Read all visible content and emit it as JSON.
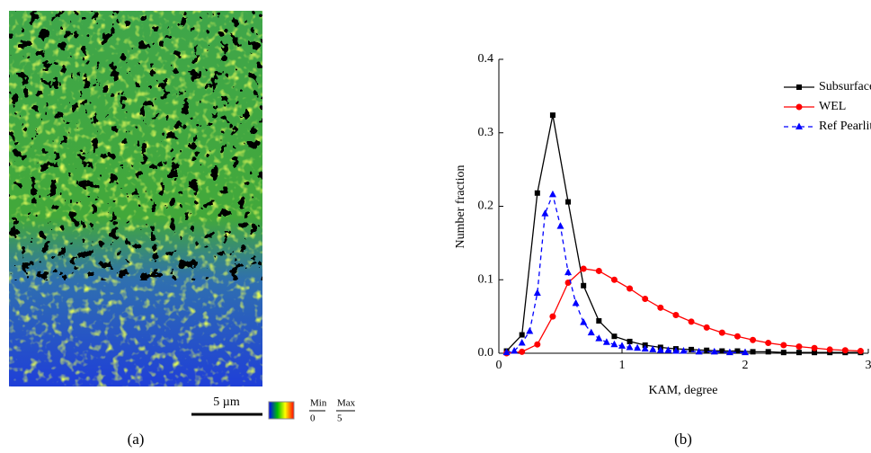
{
  "panel_a": {
    "scale_bar": "5 µm",
    "colorbar_min_label": "Min",
    "colorbar_min_value": "0",
    "colorbar_max_label": "Max",
    "colorbar_max_value": "5",
    "caption": "(a)"
  },
  "chart_data": {
    "type": "line",
    "caption": "(b)",
    "x_label": "KAM, degree",
    "y_label": "Number fraction",
    "xlim": [
      0,
      3
    ],
    "xticks": [
      0,
      1,
      2,
      3
    ],
    "ylim": [
      0,
      0.4
    ],
    "yticks": [
      {
        "value": 0,
        "label": "0.0"
      },
      0.1,
      0.2,
      0.3,
      0.4
    ],
    "legend": "top-right",
    "series": [
      {
        "name": "Subsurface Pearlite",
        "color": "#000000",
        "marker": "square",
        "dash": false,
        "x": [
          0.0625,
          0.1875,
          0.3125,
          0.4375,
          0.5625,
          0.6875,
          0.8125,
          0.9375,
          1.0625,
          1.1875,
          1.3125,
          1.4375,
          1.5625,
          1.6875,
          1.8125,
          1.9375,
          2.0625,
          2.1875,
          2.3125,
          2.4375,
          2.5625,
          2.6875,
          2.8125,
          2.9375
        ],
        "values": [
          0.003,
          0.025,
          0.218,
          0.324,
          0.206,
          0.092,
          0.044,
          0.023,
          0.016,
          0.011,
          0.008,
          0.006,
          0.005,
          0.004,
          0.003,
          0.003,
          0.002,
          0.002,
          0.001,
          0.001,
          0.001,
          0.001,
          0.001,
          0.001
        ]
      },
      {
        "name": "WEL",
        "color": "#ff0000",
        "marker": "circle",
        "dash": false,
        "x": [
          0.0625,
          0.1875,
          0.3125,
          0.4375,
          0.5625,
          0.6875,
          0.8125,
          0.9375,
          1.0625,
          1.1875,
          1.3125,
          1.4375,
          1.5625,
          1.6875,
          1.8125,
          1.9375,
          2.0625,
          2.1875,
          2.3125,
          2.4375,
          2.5625,
          2.6875,
          2.8125,
          2.9375
        ],
        "values": [
          0,
          0.002,
          0.012,
          0.05,
          0.096,
          0.115,
          0.112,
          0.1,
          0.088,
          0.074,
          0.062,
          0.052,
          0.043,
          0.035,
          0.028,
          0.023,
          0.018,
          0.014,
          0.011,
          0.009,
          0.007,
          0.005,
          0.004,
          0.003
        ]
      },
      {
        "name": "Ref Pearlite",
        "color": "#0000ff",
        "marker": "triangle",
        "dash": true,
        "x": [
          0.0625,
          0.125,
          0.1875,
          0.25,
          0.3125,
          0.375,
          0.4375,
          0.5,
          0.5625,
          0.625,
          0.6875,
          0.75,
          0.8125,
          0.875,
          0.9375,
          1.0,
          1.0625,
          1.125,
          1.1875,
          1.25,
          1.3125,
          1.375,
          1.4375,
          1.5,
          1.625,
          1.75,
          1.875,
          2.0
        ],
        "values": [
          0.001,
          0.003,
          0.014,
          0.03,
          0.082,
          0.19,
          0.216,
          0.173,
          0.11,
          0.068,
          0.042,
          0.028,
          0.02,
          0.015,
          0.012,
          0.01,
          0.008,
          0.007,
          0.006,
          0.005,
          0.004,
          0.004,
          0.003,
          0.003,
          0.002,
          0.002,
          0.001,
          0.001
        ]
      }
    ]
  }
}
